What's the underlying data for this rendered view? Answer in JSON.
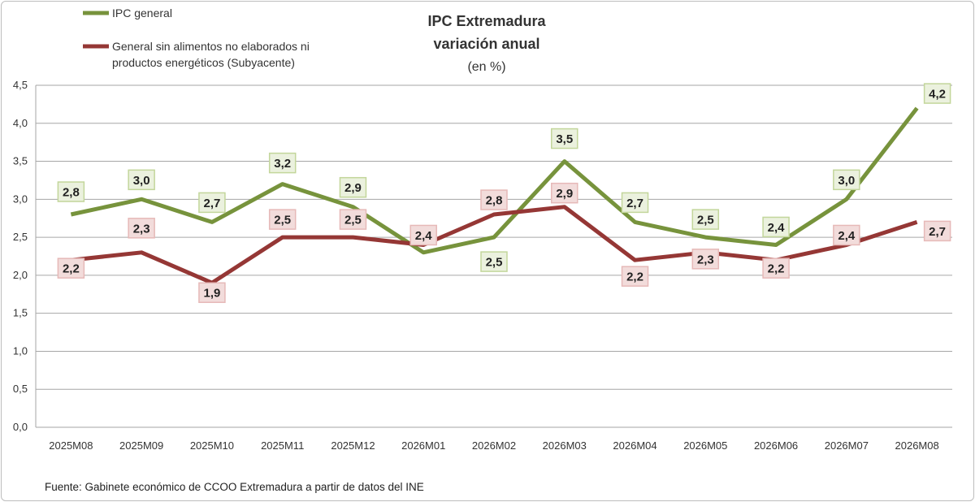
{
  "chart_data": {
    "type": "line",
    "title_lines": [
      "IPC Extremadura",
      "variación anual",
      "(en %)"
    ],
    "categories": [
      "2025M08",
      "2025M09",
      "2025M10",
      "2025M11",
      "2025M12",
      "2026M01",
      "2026M02",
      "2026M03",
      "2026M04",
      "2026M05",
      "2026M06",
      "2026M07",
      "2026M08"
    ],
    "ylim": [
      0,
      4.5
    ],
    "yticks": [
      "0,0",
      "0,5",
      "1,0",
      "1,5",
      "2,0",
      "2,5",
      "3,0",
      "3,5",
      "4,0",
      "4,5"
    ],
    "grid": true,
    "legend_position": "top-left",
    "series": [
      {
        "name": "IPC general",
        "color": "#77933c",
        "label_fill": "#ebf1de",
        "label_border": "#c3d69b",
        "values": [
          2.8,
          3.0,
          2.7,
          3.2,
          2.9,
          2.3,
          2.5,
          3.5,
          2.7,
          2.5,
          2.4,
          3.0,
          4.2
        ],
        "labels": [
          "2,8",
          "3,0",
          "2,7",
          "3,2",
          "2,9",
          "",
          "2,5",
          "3,5",
          "2,7",
          "2,5",
          "2,4",
          "3,0",
          "4,2"
        ]
      },
      {
        "name": "General sin alimentos no elaborados ni productos energéticos (Subyacente)",
        "name_lines": [
          "General sin alimentos no elaborados ni",
          "productos energéticos (Subyacente)"
        ],
        "color": "#953735",
        "label_fill": "#f2dcdb",
        "label_border": "#e6b9b8",
        "values": [
          2.2,
          2.3,
          1.9,
          2.5,
          2.5,
          2.4,
          2.8,
          2.9,
          2.2,
          2.3,
          2.2,
          2.4,
          2.7
        ],
        "labels": [
          "2,2",
          "2,3",
          "1,9",
          "2,5",
          "2,5",
          "2,4",
          "2,8",
          "2,9",
          "2,2",
          "2,3",
          "2,2",
          "2,4",
          "2,7"
        ]
      }
    ],
    "source": "Fuente: Gabinete económico de CCOO Extremadura a partir de datos del INE"
  }
}
